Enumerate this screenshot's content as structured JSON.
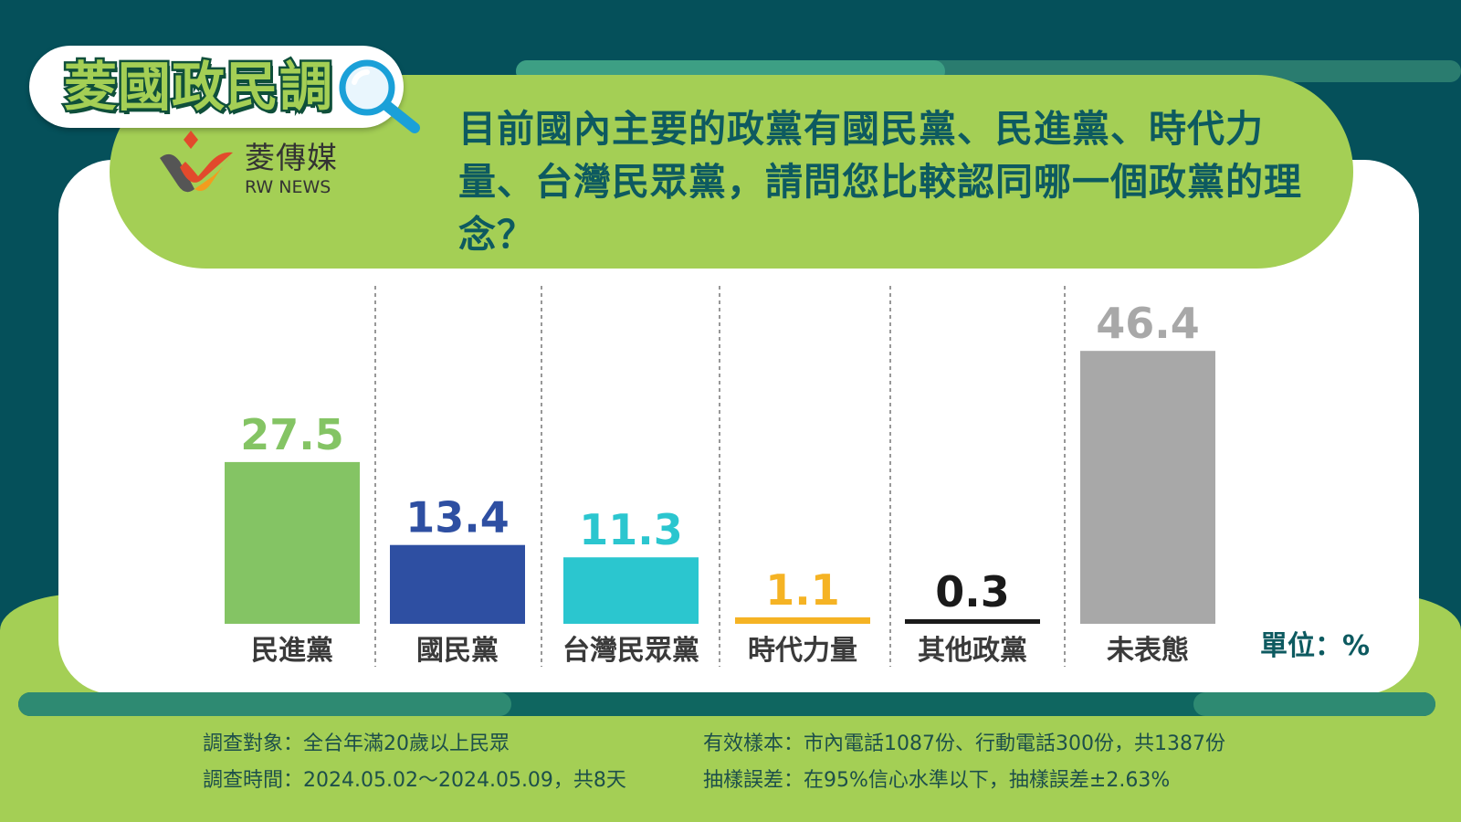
{
  "header": {
    "brand_title": "菱國政民調",
    "logo_cn": "菱傳媒",
    "logo_en": "RW NEWS",
    "question": "目前國內主要的政黨有國民黨、民進黨、時代力量、台灣民眾黨，請問您比較認同哪一個政黨的理念？"
  },
  "chart_data": {
    "type": "bar",
    "categories": [
      "民進黨",
      "國民黨",
      "台灣民眾黨",
      "時代力量",
      "其他政黨",
      "未表態"
    ],
    "values": [
      27.5,
      13.4,
      11.3,
      1.1,
      0.3,
      46.4
    ],
    "value_labels": [
      "27.5",
      "13.4",
      "11.3",
      "1.1",
      "0.3",
      "46.4"
    ],
    "colors": [
      "#84c464",
      "#2e4fa2",
      "#2bc6cf",
      "#f5b324",
      "#1a1a1a",
      "#a8a8a8"
    ],
    "label_colors": [
      "#84c464",
      "#2e4fa2",
      "#2bc6cf",
      "#f5b324",
      "#1a1a1a",
      "#a8a8a8"
    ],
    "unit_label": "單位：%",
    "grid": false
  },
  "footer": {
    "target": "調查對象：全台年滿20歲以上民眾",
    "period": "調查時間：2024.05.02～2024.05.09，共8天",
    "sample": "有效樣本：市內電話1087份、行動電話300份，共1387份",
    "error": "抽樣誤差：在95%信心水準以下，抽樣誤差±2.63%"
  }
}
